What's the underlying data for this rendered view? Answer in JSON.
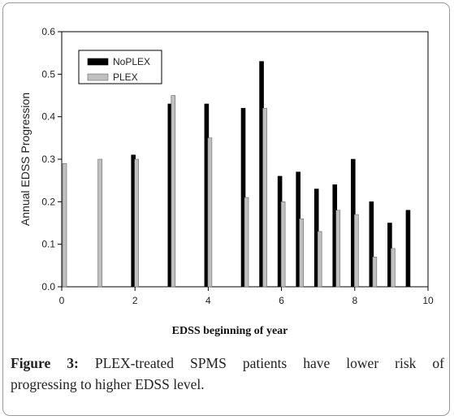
{
  "chart_data": {
    "type": "bar",
    "title": "",
    "xlabel": "EDSS beginning of year",
    "ylabel": "Annual EDSS Progression",
    "xlim": [
      0,
      10
    ],
    "ylim": [
      0,
      0.6
    ],
    "xticks": [
      "0",
      "2",
      "4",
      "6",
      "8",
      "10"
    ],
    "yticks": [
      "0.0",
      "0.1",
      "0.2",
      "0.3",
      "0.4",
      "0.5",
      "0.6"
    ],
    "legend_position": "top-left",
    "grid": false,
    "series": [
      {
        "name": "NoPLEX",
        "color": "#000000",
        "points": [
          {
            "x": 2,
            "y": 0.31
          },
          {
            "x": 3,
            "y": 0.43
          },
          {
            "x": 4,
            "y": 0.43
          },
          {
            "x": 5,
            "y": 0.42
          },
          {
            "x": 5.5,
            "y": 0.53
          },
          {
            "x": 6,
            "y": 0.26
          },
          {
            "x": 6.5,
            "y": 0.27
          },
          {
            "x": 7,
            "y": 0.23
          },
          {
            "x": 7.5,
            "y": 0.24
          },
          {
            "x": 8,
            "y": 0.3
          },
          {
            "x": 8.5,
            "y": 0.2
          },
          {
            "x": 9,
            "y": 0.15
          },
          {
            "x": 9.5,
            "y": 0.18
          }
        ]
      },
      {
        "name": "PLEX",
        "color": "#c0c0c0",
        "points": [
          {
            "x": 0,
            "y": 0.29
          },
          {
            "x": 1,
            "y": 0.3
          },
          {
            "x": 2,
            "y": 0.3
          },
          {
            "x": 3,
            "y": 0.45
          },
          {
            "x": 4,
            "y": 0.35
          },
          {
            "x": 5,
            "y": 0.21
          },
          {
            "x": 5.5,
            "y": 0.42
          },
          {
            "x": 6,
            "y": 0.2
          },
          {
            "x": 6.5,
            "y": 0.16
          },
          {
            "x": 7,
            "y": 0.13
          },
          {
            "x": 7.5,
            "y": 0.18
          },
          {
            "x": 8,
            "y": 0.17
          },
          {
            "x": 8.5,
            "y": 0.07
          },
          {
            "x": 9,
            "y": 0.09
          }
        ]
      }
    ]
  },
  "caption": {
    "label": "Figure 3:",
    "text": " PLEX-treated SPMS patients have lower risk of",
    "text_line2": "progressing to higher EDSS level."
  }
}
